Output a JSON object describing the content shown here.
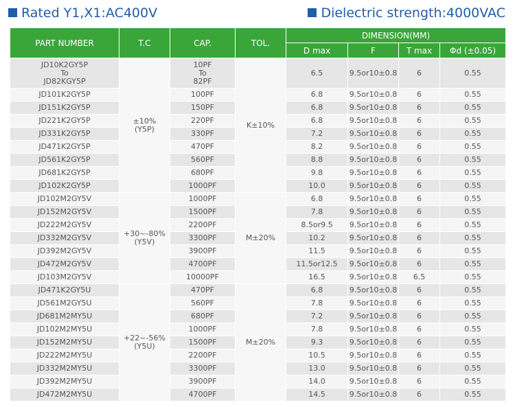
{
  "header": {
    "left_title": "Rated Y1,X1:AC400V",
    "right_title": "Dielectric strength:4000VAC"
  },
  "table": {
    "columns": {
      "part_number": "PART NUMBER",
      "tc": "T.C",
      "cap": "CAP.",
      "tol": "TOL.",
      "dimension": "DIMENSION(MM)",
      "d_max": "D max",
      "f": "F",
      "t_max": "T max",
      "phi_d": "Φd (±0.05)"
    },
    "groups": [
      {
        "tc": [
          "±10%",
          "(Y5P)"
        ],
        "tol": "K±10%",
        "rows": [
          {
            "part": [
              "JD10K2GY5P",
              "To",
              "JD82KGY5P"
            ],
            "cap": [
              "10PF",
              "To",
              "82PF"
            ],
            "d_max": "6.5",
            "f": "9.5or10±0.8",
            "t_max": "6",
            "phi_d": "0.55"
          },
          {
            "part": "JD101K2GY5P",
            "cap": "100PF",
            "d_max": "6.8",
            "f": "9.5or10±0.8",
            "t_max": "6",
            "phi_d": "0.55"
          },
          {
            "part": "JD151K2GY5P",
            "cap": "150PF",
            "d_max": "6.8",
            "f": "9.5or10±0.8",
            "t_max": "6",
            "phi_d": "0.55"
          },
          {
            "part": "JD221K2GY5P",
            "cap": "220PF",
            "d_max": "6.8",
            "f": "9.5or10±0.8",
            "t_max": "6",
            "phi_d": "0.55"
          },
          {
            "part": "JD331K2GY5P",
            "cap": "330PF",
            "d_max": "7.2",
            "f": "9.5or10±0.8",
            "t_max": "6",
            "phi_d": "0.55"
          },
          {
            "part": "JD471K2GY5P",
            "cap": "470PF",
            "d_max": "8.2",
            "f": "9.5or10±0.8",
            "t_max": "6",
            "phi_d": "0.55"
          },
          {
            "part": "JD561K2GY5P",
            "cap": "560PF",
            "d_max": "8.8",
            "f": "9.5or10±0.8",
            "t_max": "6",
            "phi_d": "0.55"
          },
          {
            "part": "JD681K2GY5P",
            "cap": "680PF",
            "d_max": "9.8",
            "f": "9.5or10±0.8",
            "t_max": "6",
            "phi_d": "0.55"
          },
          {
            "part": "JD102K2GY5P",
            "cap": "1000PF",
            "d_max": "10.0",
            "f": "9.5or10±0.8",
            "t_max": "6",
            "phi_d": "0.55"
          }
        ]
      },
      {
        "tc": [
          "+30~-80%",
          "(Y5V)"
        ],
        "tol": "M±20%",
        "rows": [
          {
            "part": "JD102M2GY5V",
            "cap": "1000PF",
            "d_max": "6.8",
            "f": "9.5or10±0.8",
            "t_max": "6",
            "phi_d": "0.55"
          },
          {
            "part": "JD152M2GY5V",
            "cap": "1500PF",
            "d_max": "7.8",
            "f": "9.5or10±0.8",
            "t_max": "6",
            "phi_d": "0.55"
          },
          {
            "part": "JD222M2GY5V",
            "cap": "2200PF",
            "d_max": "8.5or9.5",
            "f": "9.5or10±0.8",
            "t_max": "6",
            "phi_d": "0.55"
          },
          {
            "part": "JD332M2GY5V",
            "cap": "3300PF",
            "d_max": "10.2",
            "f": "9.5or10±0.8",
            "t_max": "6",
            "phi_d": "0.55"
          },
          {
            "part": "JD392M2GY5V",
            "cap": "3900PF",
            "d_max": "11.5",
            "f": "9.5or10±0.8",
            "t_max": "6",
            "phi_d": "0.55"
          },
          {
            "part": "JD472M2GY5V",
            "cap": "4700PF",
            "d_max": "11.5or12.5",
            "f": "9.5or10±0.8",
            "t_max": "6",
            "phi_d": "0.55"
          },
          {
            "part": "JD103M2GY5V",
            "cap": "10000PF",
            "d_max": "16.5",
            "f": "9.5or10±0.8",
            "t_max": "6.5",
            "phi_d": "0.55"
          }
        ]
      },
      {
        "tc": [
          "+22~-56%",
          "(Y5U)"
        ],
        "tol": "M±20%",
        "rows": [
          {
            "part": "JD471K2GY5U",
            "cap": "470PF",
            "d_max": "6.8",
            "f": "9.5or10±0.8",
            "t_max": "6",
            "phi_d": "0.55"
          },
          {
            "part": "JD561M2GY5U",
            "cap": "560PF",
            "d_max": "7.8",
            "f": "9.5or10±0.8",
            "t_max": "6",
            "phi_d": "0.55"
          },
          {
            "part": "JD681M2MY5U",
            "cap": "680PF",
            "d_max": "7.2",
            "f": "9.5or10±0.8",
            "t_max": "6",
            "phi_d": "0.55"
          },
          {
            "part": "JD102M2MY5U",
            "cap": "1000PF",
            "d_max": "7.8",
            "f": "9.5or10±0.8",
            "t_max": "6",
            "phi_d": "0.55"
          },
          {
            "part": "JD152M2MY5U",
            "cap": "1500PF",
            "d_max": "9.3",
            "f": "9.5or10±0.8",
            "t_max": "6",
            "phi_d": "0.55"
          },
          {
            "part": "JD222M2MY5U",
            "cap": "2200PF",
            "d_max": "10.5",
            "f": "9.5or10±0.8",
            "t_max": "6",
            "phi_d": "0.55"
          },
          {
            "part": "JD332M2MY5U",
            "cap": "3300PF",
            "d_max": "13.0",
            "f": "9.5or10±0.8",
            "t_max": "6",
            "phi_d": "0.55"
          },
          {
            "part": "JD392M2MY5U",
            "cap": "3900PF",
            "d_max": "14.0",
            "f": "9.5or10±0.8",
            "t_max": "6",
            "phi_d": "0.55"
          },
          {
            "part": "JD472M2MY5U",
            "cap": "4700PF",
            "d_max": "14.5",
            "f": "9.5or10±0.8",
            "t_max": "6",
            "phi_d": "0.55"
          }
        ]
      }
    ]
  }
}
